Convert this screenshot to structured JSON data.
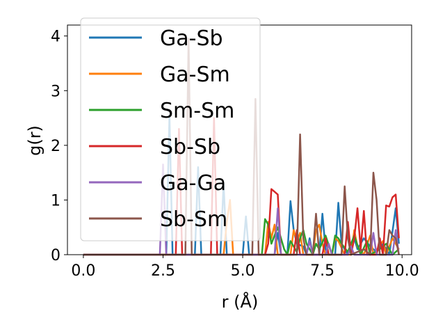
{
  "chart_data": {
    "type": "line",
    "title": "",
    "xlabel": "r (Å)",
    "ylabel": "g(r)",
    "xlim": [
      -0.5,
      10.3
    ],
    "ylim": [
      0,
      4.2
    ],
    "xticks": [
      "0.0",
      "2.5",
      "5.0",
      "7.5",
      "10.0"
    ],
    "xtick_values": [
      0,
      2.5,
      5,
      7.5,
      10
    ],
    "yticks": [
      "0",
      "1",
      "2",
      "3",
      "4"
    ],
    "ytick_values": [
      0,
      1,
      2,
      3,
      4
    ],
    "grid": false,
    "legend_position": "upper-left",
    "series": [
      {
        "name": "Ga-Sb",
        "color": "#1f77b4",
        "points": [
          [
            0,
            0
          ],
          [
            2.5,
            0
          ],
          [
            2.6,
            0
          ],
          [
            2.7,
            2.55
          ],
          [
            2.8,
            0
          ],
          [
            3.5,
            0
          ],
          [
            3.6,
            1.6
          ],
          [
            3.7,
            0
          ],
          [
            4.3,
            0
          ],
          [
            4.4,
            1.3
          ],
          [
            4.5,
            0
          ],
          [
            5.0,
            0
          ],
          [
            5.1,
            0.7
          ],
          [
            5.2,
            0
          ],
          [
            6.0,
            0
          ],
          [
            6.1,
            0.4
          ],
          [
            6.2,
            0
          ],
          [
            6.4,
            0
          ],
          [
            6.5,
            0.98
          ],
          [
            6.6,
            0.45
          ],
          [
            6.7,
            0.2
          ],
          [
            6.9,
            0.15
          ],
          [
            7.0,
            0
          ],
          [
            7.1,
            0.3
          ],
          [
            7.2,
            0
          ],
          [
            7.4,
            0
          ],
          [
            7.5,
            0.75
          ],
          [
            7.6,
            0.1
          ],
          [
            7.7,
            0
          ],
          [
            7.9,
            0
          ],
          [
            8.0,
            0.95
          ],
          [
            8.1,
            0.2
          ],
          [
            8.3,
            0
          ],
          [
            8.5,
            0.3
          ],
          [
            8.6,
            0.1
          ],
          [
            8.8,
            0.3
          ],
          [
            9.0,
            0.15
          ],
          [
            9.2,
            0.05
          ],
          [
            9.4,
            0.2
          ],
          [
            9.6,
            0
          ],
          [
            9.8,
            0.85
          ],
          [
            9.9,
            0.2
          ]
        ]
      },
      {
        "name": "Ga-Sm",
        "color": "#ff7f0e",
        "points": [
          [
            0,
            0
          ],
          [
            4.4,
            0
          ],
          [
            4.5,
            0.6
          ],
          [
            4.6,
            1.0
          ],
          [
            4.7,
            0
          ],
          [
            5.7,
            0
          ],
          [
            5.8,
            0.6
          ],
          [
            5.9,
            0.3
          ],
          [
            6.0,
            0.55
          ],
          [
            6.1,
            0
          ],
          [
            6.5,
            0
          ],
          [
            6.6,
            0.45
          ],
          [
            6.7,
            0.25
          ],
          [
            6.8,
            0.4
          ],
          [
            6.9,
            0
          ],
          [
            7.2,
            0
          ],
          [
            7.3,
            0.45
          ],
          [
            7.4,
            0.55
          ],
          [
            7.5,
            0.2
          ],
          [
            7.6,
            0
          ],
          [
            7.8,
            0
          ],
          [
            7.9,
            0.3
          ],
          [
            8.0,
            0.25
          ],
          [
            8.2,
            0
          ],
          [
            8.4,
            0
          ],
          [
            8.5,
            0.45
          ],
          [
            8.6,
            0.15
          ],
          [
            8.8,
            0
          ],
          [
            9.0,
            0.35
          ],
          [
            9.1,
            0
          ],
          [
            9.4,
            0.25
          ],
          [
            9.5,
            0
          ],
          [
            9.7,
            0.3
          ],
          [
            9.9,
            0.1
          ]
        ]
      },
      {
        "name": "Sm-Sm",
        "color": "#2ca02c",
        "points": [
          [
            0,
            0
          ],
          [
            5.6,
            0
          ],
          [
            5.7,
            0.65
          ],
          [
            5.8,
            0.55
          ],
          [
            5.9,
            0.2
          ],
          [
            6.0,
            0.35
          ],
          [
            6.1,
            0.5
          ],
          [
            6.2,
            0.3
          ],
          [
            6.3,
            0.1
          ],
          [
            6.4,
            0
          ],
          [
            6.5,
            0.25
          ],
          [
            6.6,
            0.15
          ],
          [
            6.7,
            0.05
          ],
          [
            6.8,
            0.3
          ],
          [
            6.9,
            0.45
          ],
          [
            7.0,
            0.2
          ],
          [
            7.1,
            0.1
          ],
          [
            7.2,
            0
          ],
          [
            7.3,
            0.2
          ],
          [
            7.4,
            0.1
          ],
          [
            7.6,
            0.35
          ],
          [
            7.8,
            0
          ],
          [
            7.9,
            0.35
          ],
          [
            8.0,
            0.3
          ],
          [
            8.1,
            0.2
          ],
          [
            8.3,
            0.05
          ],
          [
            8.5,
            0.35
          ],
          [
            8.7,
            0
          ],
          [
            8.9,
            0.25
          ],
          [
            9.0,
            0
          ],
          [
            9.3,
            0.1
          ],
          [
            9.5,
            0.2
          ],
          [
            9.7,
            0
          ],
          [
            9.9,
            0.1
          ]
        ]
      },
      {
        "name": "Sb-Sb",
        "color": "#d62728",
        "points": [
          [
            0,
            0
          ],
          [
            2.9,
            0
          ],
          [
            3.0,
            2.3
          ],
          [
            3.1,
            0
          ],
          [
            4.0,
            0
          ],
          [
            4.1,
            2.5
          ],
          [
            4.2,
            0
          ],
          [
            5.7,
            0
          ],
          [
            5.8,
            0.2
          ],
          [
            5.9,
            1.2
          ],
          [
            6.0,
            1.15
          ],
          [
            6.1,
            1.1
          ],
          [
            6.2,
            0
          ],
          [
            6.6,
            0
          ],
          [
            6.7,
            0.45
          ],
          [
            6.8,
            0
          ],
          [
            7.5,
            0
          ],
          [
            7.6,
            0.3
          ],
          [
            7.7,
            0
          ],
          [
            8.2,
            0
          ],
          [
            8.3,
            0.6
          ],
          [
            8.4,
            0
          ],
          [
            8.5,
            0.3
          ],
          [
            8.6,
            0.85
          ],
          [
            8.7,
            0.1
          ],
          [
            8.8,
            0.8
          ],
          [
            8.9,
            0
          ],
          [
            9.2,
            0
          ],
          [
            9.3,
            0.3
          ],
          [
            9.4,
            0
          ],
          [
            9.5,
            0.9
          ],
          [
            9.6,
            0.88
          ],
          [
            9.7,
            1.05
          ],
          [
            9.8,
            1.1
          ],
          [
            9.9,
            0.3
          ]
        ]
      },
      {
        "name": "Ga-Ga",
        "color": "#9467bd",
        "points": [
          [
            0,
            0
          ],
          [
            2.4,
            0
          ],
          [
            2.5,
            1.65
          ],
          [
            2.6,
            0
          ],
          [
            6.0,
            0
          ],
          [
            6.1,
            0.85
          ],
          [
            6.2,
            0
          ],
          [
            7.0,
            0
          ],
          [
            7.1,
            0.25
          ],
          [
            7.2,
            0
          ],
          [
            7.6,
            0
          ],
          [
            7.7,
            0.2
          ],
          [
            7.8,
            0
          ],
          [
            8.3,
            0
          ],
          [
            8.4,
            0.15
          ],
          [
            8.5,
            0
          ],
          [
            9.0,
            0
          ],
          [
            9.1,
            0.4
          ],
          [
            9.2,
            0
          ],
          [
            9.7,
            0
          ],
          [
            9.8,
            0.45
          ],
          [
            9.9,
            0
          ]
        ]
      },
      {
        "name": "Sb-Sm",
        "color": "#8c564b",
        "points": [
          [
            0,
            0
          ],
          [
            3.2,
            0
          ],
          [
            3.3,
            3.95
          ],
          [
            3.4,
            0
          ],
          [
            5.3,
            0
          ],
          [
            5.4,
            2.85
          ],
          [
            5.5,
            0
          ],
          [
            6.7,
            0
          ],
          [
            6.8,
            2.2
          ],
          [
            6.9,
            0.3
          ],
          [
            7.0,
            0
          ],
          [
            7.2,
            0
          ],
          [
            7.3,
            0.75
          ],
          [
            7.4,
            0
          ],
          [
            8.1,
            0
          ],
          [
            8.2,
            1.25
          ],
          [
            8.3,
            0.3
          ],
          [
            8.4,
            0
          ],
          [
            8.8,
            0.1
          ],
          [
            9.0,
            0
          ],
          [
            9.1,
            1.5
          ],
          [
            9.2,
            1.0
          ],
          [
            9.3,
            0
          ],
          [
            9.5,
            0
          ],
          [
            9.6,
            0.45
          ],
          [
            9.7,
            0.35
          ],
          [
            9.8,
            0.3
          ],
          [
            9.9,
            0
          ]
        ]
      }
    ]
  }
}
